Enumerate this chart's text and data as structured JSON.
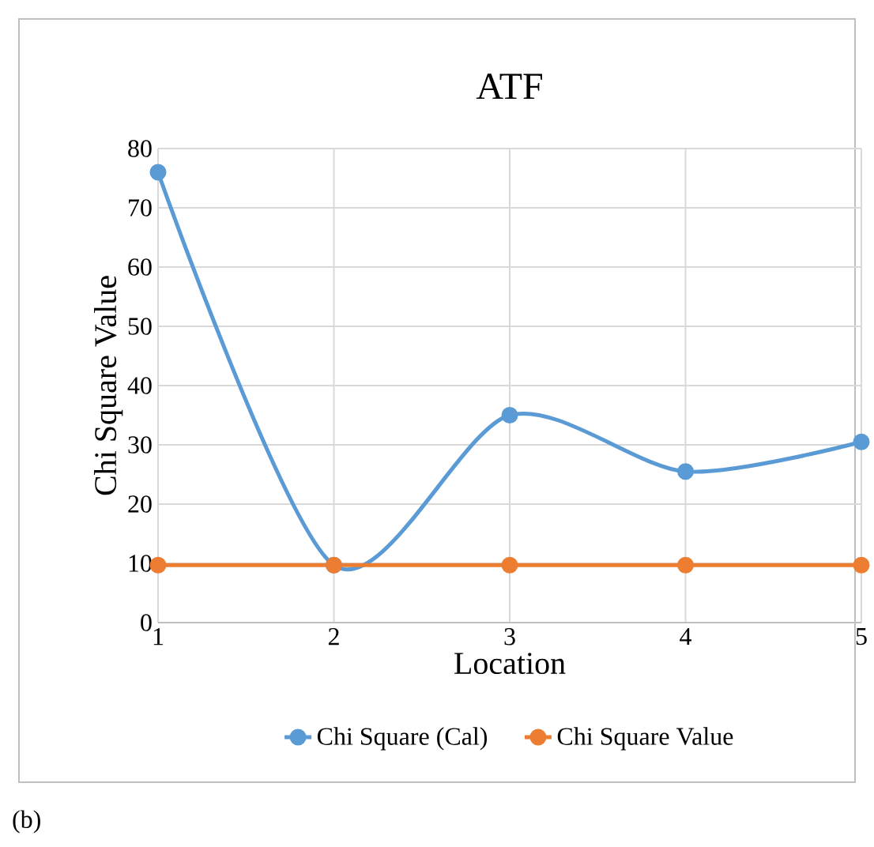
{
  "chart_data": {
    "type": "line",
    "title": "ATF",
    "xlabel": "Location",
    "ylabel": "Chi Square Value",
    "x": [
      1,
      2,
      3,
      4,
      5
    ],
    "series": [
      {
        "name": "Chi Square (Cal)",
        "color": "#5b9bd5",
        "values": [
          76,
          9.7,
          35,
          25.5,
          30.5
        ]
      },
      {
        "name": "Chi Square Value",
        "color": "#ed7d31",
        "values": [
          9.7,
          9.7,
          9.7,
          9.7,
          9.7
        ]
      }
    ],
    "xlim": [
      1,
      5
    ],
    "xticks": [
      1,
      2,
      3,
      4,
      5
    ],
    "ylim": [
      0,
      80
    ],
    "yticks": [
      0,
      10,
      20,
      30,
      40,
      50,
      60,
      70,
      80
    ],
    "grid": true,
    "legend": "bottom",
    "marker": "circle",
    "line_style": "solid",
    "annotations": [
      "(b)"
    ]
  }
}
